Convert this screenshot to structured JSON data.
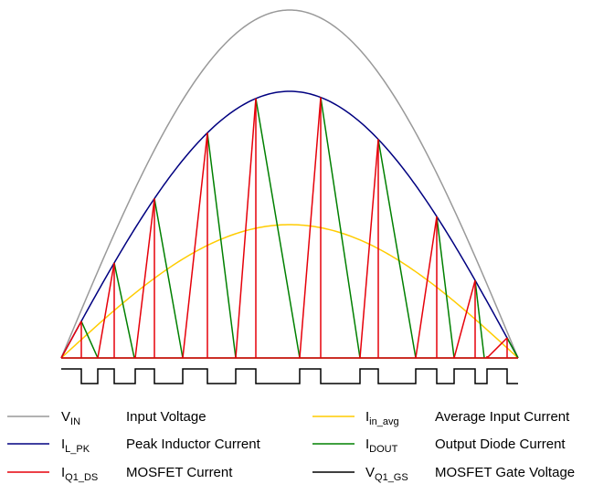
{
  "legend": {
    "items": [
      {
        "id": "vin",
        "symbol": "V",
        "sub": "IN",
        "label": "Input Voltage",
        "color": "#999999"
      },
      {
        "id": "ilpk",
        "symbol": "I",
        "sub": "L_PK",
        "label": "Peak Inductor Current",
        "color": "#000080"
      },
      {
        "id": "iq1ds",
        "symbol": "I",
        "sub": "Q1_DS",
        "label": "MOSFET Current",
        "color": "#e6000a"
      },
      {
        "id": "iinavg",
        "symbol": "I",
        "sub": "in_avg",
        "label": "Average Input Current",
        "color": "#ffcc00"
      },
      {
        "id": "idout",
        "symbol": "I",
        "sub": "DOUT",
        "label": "Output Diode Current",
        "color": "#008000"
      },
      {
        "id": "vq1gs",
        "symbol": "V",
        "sub": "Q1_GS",
        "label": "MOSFET Gate Voltage",
        "color": "#000000"
      }
    ]
  }
}
